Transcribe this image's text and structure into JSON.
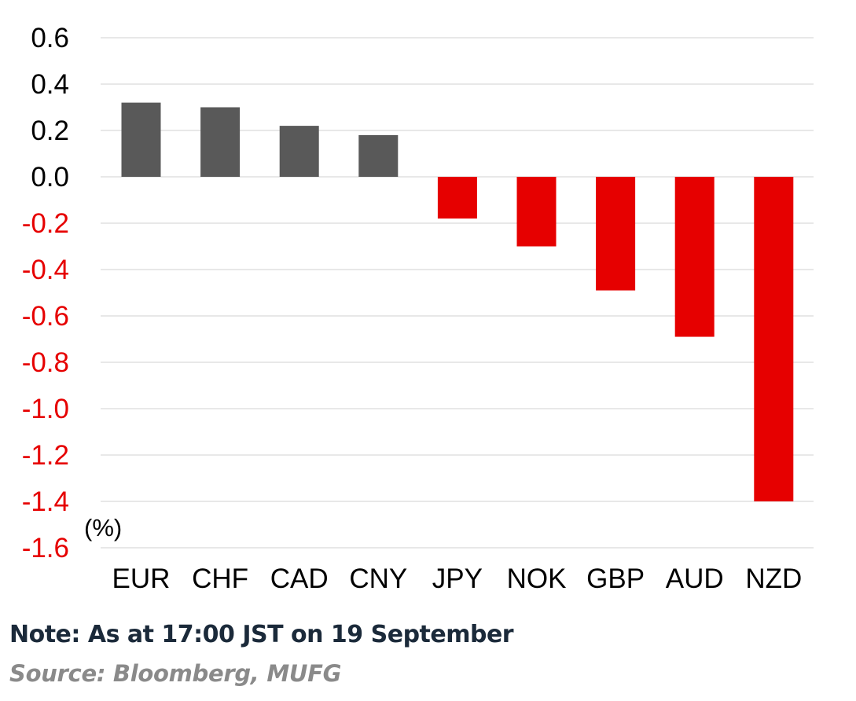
{
  "chart_data": {
    "type": "bar",
    "categories": [
      "EUR",
      "CHF",
      "CAD",
      "CNY",
      "JPY",
      "NOK",
      "GBP",
      "AUD",
      "NZD"
    ],
    "values": [
      0.32,
      0.3,
      0.22,
      0.18,
      -0.18,
      -0.3,
      -0.49,
      -0.69,
      -1.4
    ],
    "ylim": [
      -1.6,
      0.6
    ],
    "yticks": [
      "0.6",
      "0.4",
      "0.2",
      "0.0",
      "-0.2",
      "-0.4",
      "-0.6",
      "-0.8",
      "-1.0",
      "-1.2",
      "-1.4",
      "-1.6"
    ],
    "ytick_values": [
      0.6,
      0.4,
      0.2,
      0.0,
      -0.2,
      -0.4,
      -0.6,
      -0.8,
      -1.0,
      -1.2,
      -1.4,
      -1.6
    ],
    "unit_label": "(%)",
    "grid": true,
    "colors": {
      "positive": "#595959",
      "negative": "#e60000",
      "positive_label": "#000000",
      "negative_label": "#e60000",
      "grid": "#e0e0e0"
    }
  },
  "footer": {
    "note": "Note: As at 17:00 JST on 19 September",
    "source": "Source: Bloomberg, MUFG"
  }
}
